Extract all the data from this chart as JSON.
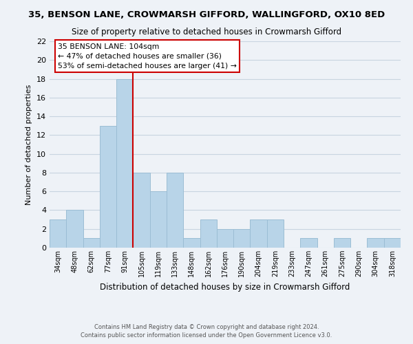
{
  "title": "35, BENSON LANE, CROWMARSH GIFFORD, WALLINGFORD, OX10 8ED",
  "subtitle": "Size of property relative to detached houses in Crowmarsh Gifford",
  "xlabel": "Distribution of detached houses by size in Crowmarsh Gifford",
  "ylabel": "Number of detached properties",
  "bin_labels": [
    "34sqm",
    "48sqm",
    "62sqm",
    "77sqm",
    "91sqm",
    "105sqm",
    "119sqm",
    "133sqm",
    "148sqm",
    "162sqm",
    "176sqm",
    "190sqm",
    "204sqm",
    "219sqm",
    "233sqm",
    "247sqm",
    "261sqm",
    "275sqm",
    "290sqm",
    "304sqm",
    "318sqm"
  ],
  "bar_values": [
    3,
    4,
    1,
    13,
    18,
    8,
    6,
    8,
    1,
    3,
    2,
    2,
    3,
    3,
    0,
    1,
    0,
    1,
    0,
    1,
    1
  ],
  "bar_color": "#b8d4e8",
  "bar_edge_color": "#9bbdd4",
  "grid_color": "#c8d4e0",
  "vline_color": "#cc0000",
  "annotation_line1": "35 BENSON LANE: 104sqm",
  "annotation_line2": "← 47% of detached houses are smaller (36)",
  "annotation_line3": "53% of semi-detached houses are larger (41) →",
  "annotation_box_color": "#ffffff",
  "annotation_box_edge": "#cc0000",
  "ylim": [
    0,
    22
  ],
  "yticks": [
    0,
    2,
    4,
    6,
    8,
    10,
    12,
    14,
    16,
    18,
    20,
    22
  ],
  "footer": "Contains HM Land Registry data © Crown copyright and database right 2024.\nContains public sector information licensed under the Open Government Licence v3.0.",
  "background_color": "#eef2f7"
}
